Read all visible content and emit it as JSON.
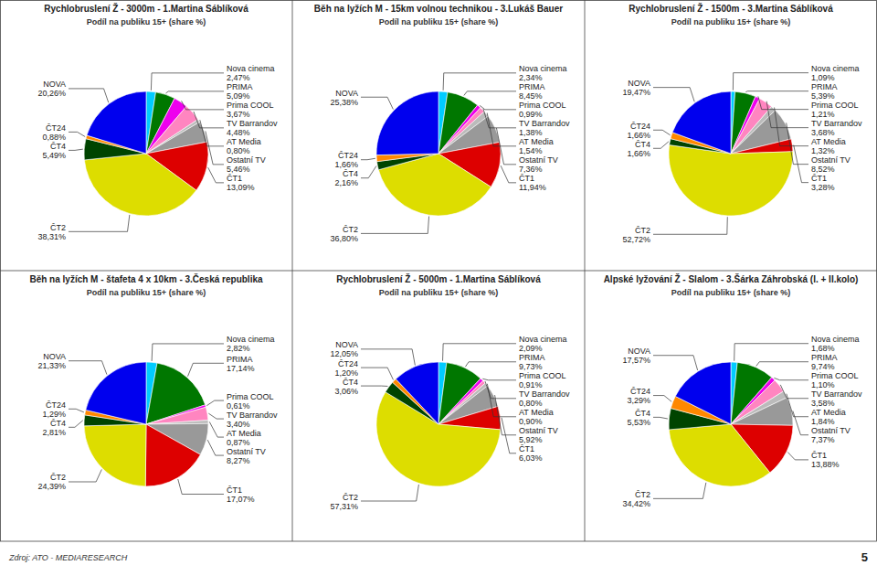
{
  "chart_data": [
    {
      "type": "pie",
      "title": "Rychlobruslení Ž - 3000m - 1.Martina Sáblíková",
      "subtitle": "Podíl na publiku 15+ (share %)",
      "categories": [
        "Nova cinema",
        "PRIMA",
        "Prima COOL",
        "TV Barrandov",
        "AT Media",
        "Ostatní TV",
        "ČT1",
        "ČT2",
        "ČT4",
        "ČT24",
        "NOVA"
      ],
      "values": [
        2.47,
        5.09,
        3.67,
        4.48,
        0.8,
        5.46,
        13.09,
        38.31,
        5.49,
        0.88,
        20.26
      ],
      "value_labels": [
        "2,47%",
        "5,09%",
        "3,67%",
        "4,48%",
        "0,80%",
        "5,46%",
        "13,09%",
        "38,31%",
        "5,49%",
        "0,88%",
        "20,26%"
      ],
      "colors": [
        "#00CCFF",
        "#007700",
        "#EE00EE",
        "#FF85C0",
        "#BBBBBB",
        "#999999",
        "#DD0000",
        "#DDDD00",
        "#004400",
        "#FF8800",
        "#0000EE"
      ],
      "data_labels": true
    },
    {
      "type": "pie",
      "title": "Běh na lyžích M - 15km volnou technikou - 3.Lukáš Bauer",
      "subtitle": "Podíl na publiku 15+ (share %)",
      "categories": [
        "Nova cinema",
        "PRIMA",
        "Prima COOL",
        "TV Barrandov",
        "AT Media",
        "Ostatní TV",
        "ČT1",
        "ČT2",
        "ČT4",
        "ČT24",
        "NOVA"
      ],
      "values": [
        2.34,
        8.45,
        0.99,
        1.38,
        1.54,
        7.36,
        11.94,
        36.8,
        2.16,
        1.66,
        25.38
      ],
      "value_labels": [
        "2,34%",
        "8,45%",
        "0,99%",
        "1,38%",
        "1,54%",
        "7,36%",
        "11,94%",
        "36,80%",
        "2,16%",
        "1,66%",
        "25,38%"
      ],
      "colors": [
        "#00CCFF",
        "#007700",
        "#EE00EE",
        "#FF85C0",
        "#BBBBBB",
        "#999999",
        "#DD0000",
        "#DDDD00",
        "#004400",
        "#FF8800",
        "#0000EE"
      ],
      "data_labels": true
    },
    {
      "type": "pie",
      "title": "Rychlobruslení Ž - 1500m - 3.Martina Sáblíková",
      "subtitle": "Podíl na publiku 15+ (share %)",
      "categories": [
        "Nova cinema",
        "PRIMA",
        "Prima COOL",
        "TV Barrandov",
        "AT Media",
        "Ostatní TV",
        "ČT1",
        "ČT2",
        "ČT4",
        "ČT24",
        "NOVA"
      ],
      "values": [
        1.09,
        5.39,
        1.21,
        3.68,
        1.32,
        8.52,
        3.28,
        52.72,
        1.66,
        1.66,
        19.47
      ],
      "value_labels": [
        "1,09%",
        "5,39%",
        "1,21%",
        "3,68%",
        "1,32%",
        "8,52%",
        "3,28%",
        "52,72%",
        "1,66%",
        "1,66%",
        "19,47%"
      ],
      "colors": [
        "#00CCFF",
        "#007700",
        "#EE00EE",
        "#FF85C0",
        "#BBBBBB",
        "#999999",
        "#DD0000",
        "#DDDD00",
        "#004400",
        "#FF8800",
        "#0000EE"
      ],
      "data_labels": true
    },
    {
      "type": "pie",
      "title": "Běh na lyžích M - štafeta 4 x 10km - 3.Česká republika",
      "subtitle": "Podíl na publiku 15+ (share %)",
      "categories": [
        "Nova cinema",
        "PRIMA",
        "Prima COOL",
        "TV Barrandov",
        "AT Media",
        "Ostatní TV",
        "ČT1",
        "ČT2",
        "ČT4",
        "ČT24",
        "NOVA"
      ],
      "values": [
        2.82,
        17.14,
        0.61,
        3.4,
        0.87,
        8.27,
        17.07,
        24.39,
        2.81,
        1.29,
        21.33
      ],
      "value_labels": [
        "2,82%",
        "17,14%",
        "0,61%",
        "3,40%",
        "0,87%",
        "8,27%",
        "17,07%",
        "24,39%",
        "2,81%",
        "1,29%",
        "21,33%"
      ],
      "colors": [
        "#00CCFF",
        "#007700",
        "#EE00EE",
        "#FF85C0",
        "#BBBBBB",
        "#999999",
        "#DD0000",
        "#DDDD00",
        "#004400",
        "#FF8800",
        "#0000EE"
      ],
      "data_labels": true
    },
    {
      "type": "pie",
      "title": "Rychlobruslení Ž - 5000m - 1.Martina Sáblíková",
      "subtitle": "Podíl na publiku 15+ (share %)",
      "categories": [
        "Nova cinema",
        "PRIMA",
        "Prima COOL",
        "TV Barrandov",
        "AT Media",
        "Ostatní TV",
        "ČT1",
        "ČT2",
        "ČT4",
        "ČT24",
        "NOVA"
      ],
      "values": [
        2.09,
        9.73,
        0.91,
        0.8,
        0.9,
        5.92,
        6.03,
        57.31,
        3.06,
        1.2,
        12.05
      ],
      "value_labels": [
        "2,09%",
        "9,73%",
        "0,91%",
        "0,80%",
        "0,90%",
        "5,92%",
        "6,03%",
        "57,31%",
        "3,06%",
        "1,20%",
        "12,05%"
      ],
      "colors": [
        "#00CCFF",
        "#007700",
        "#EE00EE",
        "#FF85C0",
        "#BBBBBB",
        "#999999",
        "#DD0000",
        "#DDDD00",
        "#004400",
        "#FF8800",
        "#0000EE"
      ],
      "data_labels": true
    },
    {
      "type": "pie",
      "title": "Alpské lyžování Ž - Slalom - 3.Šárka Záhrobská (I. + II.kolo)",
      "subtitle": "Podíl na publiku 15+ (share %)",
      "categories": [
        "Nova cinema",
        "PRIMA",
        "Prima COOL",
        "TV Barrandov",
        "AT Media",
        "Ostatní TV",
        "ČT1",
        "ČT2",
        "ČT4",
        "ČT24",
        "NOVA"
      ],
      "values": [
        1.68,
        9.74,
        1.1,
        3.58,
        1.84,
        7.37,
        13.88,
        34.42,
        5.53,
        3.29,
        17.57
      ],
      "value_labels": [
        "1,68%",
        "9,74%",
        "1,10%",
        "3,58%",
        "1,84%",
        "7,37%",
        "13,88%",
        "34,42%",
        "5,53%",
        "3,29%",
        "17,57%"
      ],
      "colors": [
        "#00CCFF",
        "#007700",
        "#EE00EE",
        "#FF85C0",
        "#BBBBBB",
        "#999999",
        "#DD0000",
        "#DDDD00",
        "#004400",
        "#FF8800",
        "#0000EE"
      ],
      "data_labels": true
    }
  ],
  "annotations": [
    "Zdroj: ATO - MEDIARESEARCH",
    "5"
  ]
}
